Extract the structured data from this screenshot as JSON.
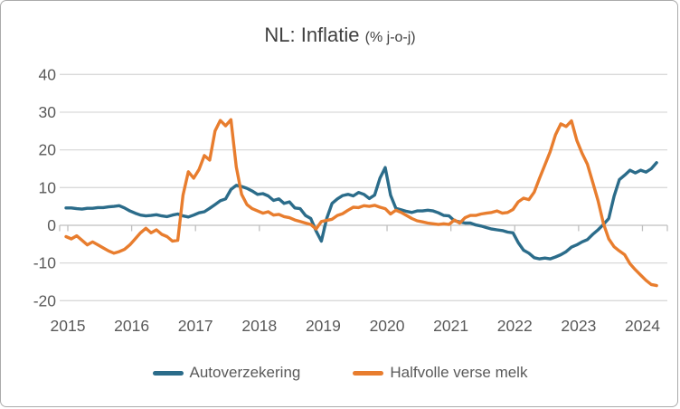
{
  "title": {
    "main": "NL: Inflatie ",
    "suffix": "(% j-o-j)"
  },
  "colors": {
    "blue_series": "#2b6c8a",
    "orange_series": "#e87d2e",
    "gridline": "#d9d9d9",
    "axis_line": "#bfbfbf",
    "tick_label": "#595959",
    "title_text": "#404040",
    "border": "#ababab",
    "background": "#ffffff"
  },
  "legend": {
    "items": [
      {
        "label": "Autoverzekering",
        "color": "#2b6c8a"
      },
      {
        "label": "Halfvolle verse melk",
        "color": "#e87d2e"
      }
    ]
  },
  "chart_data": {
    "type": "line",
    "title": "NL: Inflatie (% j-o-j)",
    "xlabel": "",
    "ylabel": "",
    "frequency": "monthly",
    "x_start": "2015-01",
    "x_end": "2024-04",
    "ylim": [
      -20,
      40
    ],
    "y_ticks": [
      40,
      30,
      20,
      10,
      0,
      -10,
      -20
    ],
    "x_tick_labels": [
      "2015",
      "2016",
      "2017",
      "2018",
      "2019",
      "2020",
      "2021",
      "2022",
      "2023",
      "2024"
    ],
    "grid": true,
    "legend_position": "bottom",
    "series": [
      {
        "name": "Autoverzekering",
        "color": "#2b6c8a",
        "values": [
          4.6,
          4.6,
          4.4,
          4.3,
          4.5,
          4.5,
          4.7,
          4.7,
          4.9,
          5.0,
          5.2,
          4.6,
          3.8,
          3.2,
          2.7,
          2.5,
          2.6,
          2.8,
          2.5,
          2.3,
          2.7,
          3.0,
          2.5,
          2.2,
          2.7,
          3.3,
          3.6,
          4.5,
          5.5,
          6.5,
          7.0,
          9.5,
          10.6,
          10.3,
          9.8,
          9.1,
          8.2,
          8.4,
          7.8,
          6.6,
          7.0,
          5.8,
          6.2,
          4.6,
          4.4,
          2.6,
          1.8,
          -1.5,
          -4.2,
          1.8,
          5.8,
          7.0,
          7.9,
          8.2,
          7.8,
          8.7,
          8.2,
          7.1,
          8.0,
          12.5,
          15.3,
          8.0,
          4.5,
          4.1,
          3.7,
          3.4,
          3.8,
          3.8,
          4.0,
          3.8,
          3.3,
          2.6,
          2.5,
          1.2,
          0.9,
          0.6,
          0.6,
          0.1,
          -0.2,
          -0.6,
          -1.0,
          -1.2,
          -1.4,
          -1.8,
          -2.0,
          -4.6,
          -6.6,
          -7.4,
          -8.6,
          -8.9,
          -8.7,
          -8.9,
          -8.4,
          -7.8,
          -7.0,
          -5.8,
          -5.2,
          -4.4,
          -3.8,
          -2.4,
          -1.2,
          0.2,
          1.8,
          7.7,
          12.1,
          13.3,
          14.6,
          13.9,
          14.6,
          14.1,
          15.0,
          16.6
        ]
      },
      {
        "name": "Halfvolle verse melk",
        "color": "#e87d2e",
        "values": [
          -3.0,
          -3.6,
          -2.8,
          -4.0,
          -5.2,
          -4.4,
          -5.2,
          -6.0,
          -6.8,
          -7.4,
          -7.0,
          -6.4,
          -5.2,
          -3.6,
          -2.0,
          -0.8,
          -2.0,
          -1.2,
          -2.4,
          -3.0,
          -4.2,
          -4.0,
          8.0,
          14.2,
          12.5,
          14.8,
          18.5,
          17.3,
          25.0,
          27.8,
          26.4,
          28.0,
          15.5,
          8.2,
          5.5,
          4.4,
          3.8,
          3.2,
          3.6,
          2.7,
          2.9,
          2.3,
          2.0,
          1.4,
          1.0,
          0.6,
          0.2,
          -1.0,
          1.0,
          1.3,
          1.6,
          2.6,
          3.1,
          4.0,
          4.8,
          4.7,
          5.2,
          5.0,
          5.3,
          4.8,
          4.4,
          3.0,
          4.0,
          3.4,
          2.6,
          1.8,
          1.2,
          0.9,
          0.6,
          0.4,
          0.2,
          0.4,
          0.2,
          1.4,
          0.6,
          2.0,
          2.6,
          2.6,
          3.0,
          3.2,
          3.4,
          3.8,
          3.2,
          3.4,
          4.2,
          6.2,
          7.2,
          6.8,
          8.8,
          12.5,
          16.0,
          19.5,
          24.0,
          26.9,
          26.2,
          27.7,
          22.5,
          19.1,
          16.2,
          11.4,
          6.5,
          0.5,
          -3.6,
          -5.7,
          -6.8,
          -7.8,
          -10.2,
          -11.8,
          -13.2,
          -14.6,
          -15.7,
          -16.0
        ]
      }
    ]
  }
}
